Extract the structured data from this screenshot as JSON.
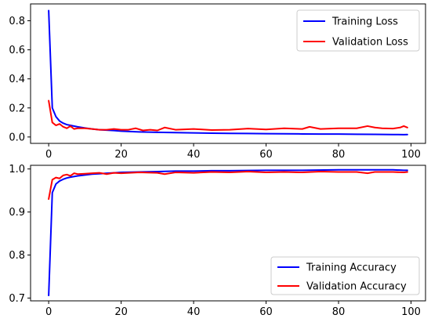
{
  "chart_data": [
    {
      "type": "line",
      "title": "",
      "xlabel": "",
      "ylabel": "",
      "xlim": [
        -5,
        104
      ],
      "ylim": [
        -0.044,
        0.916
      ],
      "xticks": [
        0,
        20,
        40,
        60,
        80,
        100
      ],
      "yticks": [
        0.0,
        0.2,
        0.4,
        0.6,
        0.8
      ],
      "xtick_labels": [
        "0",
        "20",
        "40",
        "60",
        "80",
        "100"
      ],
      "ytick_labels": [
        "0.0",
        "0.2",
        "0.4",
        "0.6",
        "0.8"
      ],
      "legend_position": "upper-right",
      "grid": false,
      "series": [
        {
          "name": "Training Loss",
          "color": "#0000ff",
          "x": [
            0,
            1,
            2,
            3,
            4,
            5,
            6,
            8,
            10,
            12,
            14,
            16,
            18,
            20,
            25,
            30,
            35,
            40,
            45,
            50,
            55,
            60,
            65,
            70,
            75,
            80,
            85,
            90,
            95,
            98,
            99
          ],
          "y": [
            0.87,
            0.2,
            0.14,
            0.11,
            0.095,
            0.085,
            0.08,
            0.07,
            0.062,
            0.055,
            0.05,
            0.047,
            0.044,
            0.04,
            0.035,
            0.032,
            0.03,
            0.028,
            0.026,
            0.025,
            0.024,
            0.023,
            0.022,
            0.021,
            0.02,
            0.02,
            0.019,
            0.018,
            0.017,
            0.016,
            0.017
          ]
        },
        {
          "name": "Validation Loss",
          "color": "#ff0000",
          "x": [
            0,
            1,
            2,
            3,
            4,
            5,
            6,
            7,
            8,
            10,
            12,
            14,
            16,
            18,
            20,
            22,
            24,
            26,
            28,
            30,
            32,
            35,
            40,
            45,
            50,
            55,
            60,
            65,
            70,
            72,
            75,
            80,
            85,
            88,
            90,
            92,
            95,
            97,
            98,
            99
          ],
          "y": [
            0.25,
            0.1,
            0.08,
            0.09,
            0.07,
            0.06,
            0.075,
            0.055,
            0.06,
            0.06,
            0.055,
            0.05,
            0.05,
            0.055,
            0.05,
            0.05,
            0.06,
            0.045,
            0.05,
            0.045,
            0.065,
            0.05,
            0.055,
            0.048,
            0.05,
            0.058,
            0.052,
            0.06,
            0.055,
            0.07,
            0.055,
            0.06,
            0.06,
            0.075,
            0.065,
            0.06,
            0.058,
            0.065,
            0.075,
            0.065
          ]
        }
      ]
    },
    {
      "type": "line",
      "title": "",
      "xlabel": "",
      "ylabel": "",
      "xlim": [
        -5,
        104
      ],
      "ylim": [
        0.6935,
        1.0085
      ],
      "xticks": [
        0,
        20,
        40,
        60,
        80,
        100
      ],
      "yticks": [
        0.7,
        0.8,
        0.9,
        1.0
      ],
      "xtick_labels": [
        "0",
        "20",
        "40",
        "60",
        "80",
        "100"
      ],
      "ytick_labels": [
        "0.7",
        "0.8",
        "0.9",
        "1.0"
      ],
      "legend_position": "lower-right",
      "grid": false,
      "series": [
        {
          "name": "Training Accuracy",
          "color": "#0000ff",
          "x": [
            0,
            1,
            2,
            3,
            4,
            5,
            6,
            8,
            10,
            12,
            14,
            16,
            18,
            20,
            25,
            30,
            35,
            40,
            45,
            50,
            60,
            70,
            80,
            90,
            95,
            98,
            99
          ],
          "y": [
            0.706,
            0.945,
            0.965,
            0.972,
            0.976,
            0.979,
            0.981,
            0.984,
            0.986,
            0.988,
            0.989,
            0.99,
            0.991,
            0.992,
            0.993,
            0.994,
            0.995,
            0.995,
            0.996,
            0.996,
            0.997,
            0.997,
            0.998,
            0.998,
            0.998,
            0.997,
            0.997
          ]
        },
        {
          "name": "Validation Accuracy",
          "color": "#ff0000",
          "x": [
            0,
            1,
            2,
            3,
            4,
            5,
            6,
            7,
            8,
            10,
            12,
            14,
            16,
            18,
            20,
            25,
            30,
            32,
            35,
            40,
            45,
            50,
            55,
            60,
            65,
            70,
            75,
            80,
            85,
            88,
            90,
            95,
            98,
            99
          ],
          "y": [
            0.93,
            0.975,
            0.98,
            0.978,
            0.985,
            0.987,
            0.984,
            0.99,
            0.988,
            0.989,
            0.99,
            0.991,
            0.988,
            0.991,
            0.99,
            0.992,
            0.991,
            0.988,
            0.992,
            0.991,
            0.993,
            0.992,
            0.994,
            0.992,
            0.993,
            0.992,
            0.994,
            0.993,
            0.993,
            0.99,
            0.993,
            0.993,
            0.992,
            0.993
          ]
        }
      ]
    }
  ]
}
